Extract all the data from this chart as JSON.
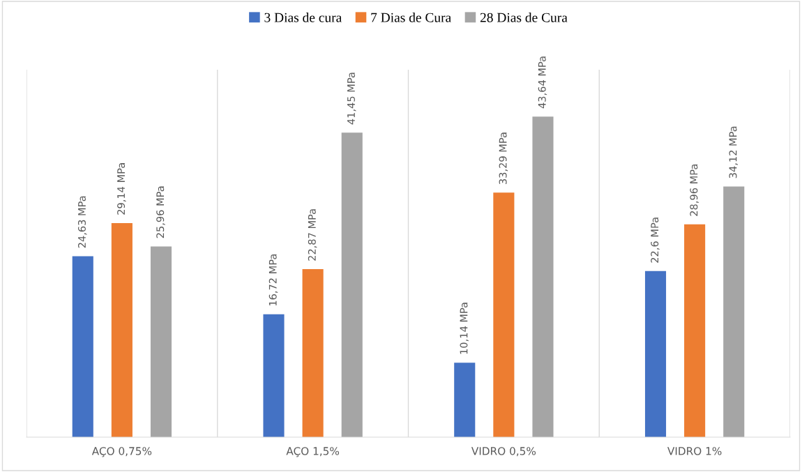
{
  "chart_data": {
    "type": "bar",
    "categories": [
      "AÇO 0,75%",
      "AÇO 1,5%",
      "VIDRO 0,5%",
      "VIDRO 1%"
    ],
    "series": [
      {
        "name": "3 Dias de cura",
        "color": "#4472c4",
        "values": [
          24.63,
          16.72,
          10.14,
          22.6
        ],
        "value_labels": [
          "24,63 MPa",
          "16,72 MPa",
          "10,14 MPa",
          "22,6 MPa"
        ]
      },
      {
        "name": "7 Dias de Cura",
        "color": "#ed7d31",
        "values": [
          29.14,
          22.87,
          33.29,
          28.96
        ],
        "value_labels": [
          "29,14 MPa",
          "22,87 MPa",
          "33,29 MPa",
          "28,96 MPa"
        ]
      },
      {
        "name": "28 Dias de Cura",
        "color": "#a5a5a5",
        "values": [
          25.96,
          41.45,
          43.64,
          34.12
        ],
        "value_labels": [
          "25,96 MPa",
          "41,45 MPa",
          "43,64 MPa",
          "34,12 MPa"
        ]
      }
    ],
    "grid": "x",
    "legend": "top"
  }
}
